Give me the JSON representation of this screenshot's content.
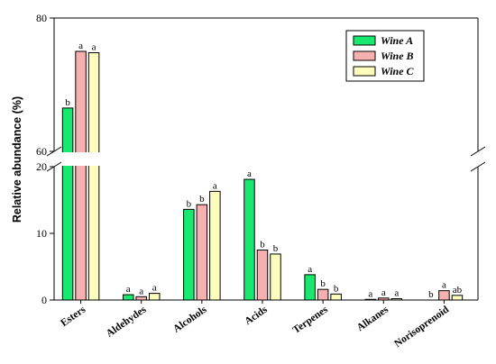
{
  "chart_data": {
    "type": "bar",
    "ylabel": "Relative abundance (%)",
    "y_axis_break": {
      "lower_range": [
        0,
        20
      ],
      "upper_range": [
        60,
        80
      ]
    },
    "y_ticks_lower": [
      0,
      10,
      20
    ],
    "y_ticks_upper": [
      60,
      80
    ],
    "categories": [
      "Esters",
      "Aldehydes",
      "Alcohols",
      "Acids",
      "Terpenes",
      "Alkanes",
      "Norisoprenoid"
    ],
    "series": [
      {
        "name": "Wine A",
        "color": "#18e86f",
        "values": [
          66.5,
          0.8,
          13.6,
          18.1,
          3.8,
          0.1,
          0.0
        ],
        "letters": [
          "b",
          "a",
          "b",
          "a",
          "a",
          "a",
          "b"
        ]
      },
      {
        "name": "Wine B",
        "color": "#f7b0b0",
        "values": [
          75.0,
          0.5,
          14.3,
          7.5,
          1.6,
          0.3,
          1.4
        ],
        "letters": [
          "a",
          "a",
          "b",
          "b",
          "b",
          "a",
          "a"
        ]
      },
      {
        "name": "Wine C",
        "color": "#fcfcbd",
        "values": [
          74.8,
          1.0,
          16.3,
          6.9,
          0.9,
          0.2,
          0.7
        ],
        "letters": [
          "a",
          "a",
          "a",
          "b",
          "b",
          "a",
          "ab"
        ]
      }
    ],
    "legend_position": "top-right",
    "grid": false
  }
}
